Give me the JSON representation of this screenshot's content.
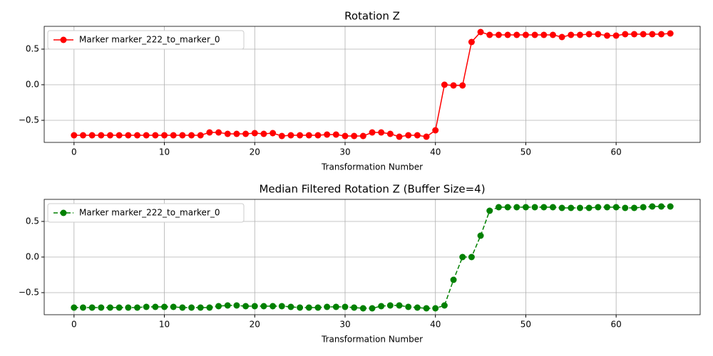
{
  "chart_data": [
    {
      "type": "line",
      "title": "Rotation Z",
      "x_label": "Transformation Number",
      "x": [
        0,
        1,
        2,
        3,
        4,
        5,
        6,
        7,
        8,
        9,
        10,
        11,
        12,
        13,
        14,
        15,
        16,
        17,
        18,
        19,
        20,
        21,
        22,
        23,
        24,
        25,
        26,
        27,
        28,
        29,
        30,
        31,
        32,
        33,
        34,
        35,
        36,
        37,
        38,
        39,
        40,
        41,
        42,
        43,
        44,
        45,
        46,
        47,
        48,
        49,
        50,
        51,
        52,
        53,
        54,
        55,
        56,
        57,
        58,
        59,
        60,
        61,
        62,
        63,
        64,
        65,
        66
      ],
      "series": [
        {
          "name": "Marker marker_222_to_marker_0",
          "color": "#ff0000",
          "linestyle": "solid",
          "values": [
            -0.71,
            -0.71,
            -0.71,
            -0.71,
            -0.71,
            -0.71,
            -0.71,
            -0.71,
            -0.71,
            -0.71,
            -0.71,
            -0.71,
            -0.71,
            -0.71,
            -0.71,
            -0.67,
            -0.67,
            -0.69,
            -0.69,
            -0.69,
            -0.68,
            -0.69,
            -0.68,
            -0.72,
            -0.71,
            -0.71,
            -0.71,
            -0.71,
            -0.7,
            -0.7,
            -0.72,
            -0.72,
            -0.72,
            -0.67,
            -0.67,
            -0.69,
            -0.73,
            -0.71,
            -0.71,
            -0.73,
            -0.64,
            0.0,
            -0.01,
            -0.01,
            0.6,
            0.74,
            0.7,
            0.7,
            0.7,
            0.7,
            0.7,
            0.7,
            0.7,
            0.7,
            0.67,
            0.7,
            0.7,
            0.71,
            0.71,
            0.69,
            0.69,
            0.71,
            0.71,
            0.71,
            0.71,
            0.71,
            0.72
          ]
        }
      ],
      "xlim": [
        -3.3,
        69.3
      ],
      "xticks": [
        0,
        10,
        20,
        30,
        40,
        50,
        60
      ],
      "ylim": [
        -0.81,
        0.82
      ],
      "yticks": [
        {
          "value": -0.5,
          "label": "−0.5"
        },
        {
          "value": 0,
          "label": "0.0"
        },
        {
          "value": 0.5,
          "label": "0.5"
        }
      ],
      "grid": true,
      "legend": "upper left"
    },
    {
      "type": "line",
      "title": "Median Filtered Rotation Z (Buffer Size=4)",
      "x_label": "Transformation Number",
      "x": [
        0,
        1,
        2,
        3,
        4,
        5,
        6,
        7,
        8,
        9,
        10,
        11,
        12,
        13,
        14,
        15,
        16,
        17,
        18,
        19,
        20,
        21,
        22,
        23,
        24,
        25,
        26,
        27,
        28,
        29,
        30,
        31,
        32,
        33,
        34,
        35,
        36,
        37,
        38,
        39,
        40,
        41,
        42,
        43,
        44,
        45,
        46,
        47,
        48,
        49,
        50,
        51,
        52,
        53,
        54,
        55,
        56,
        57,
        58,
        59,
        60,
        61,
        62,
        63,
        64,
        65,
        66
      ],
      "series": [
        {
          "name": "Marker marker_222_to_marker_0",
          "color": "#008000",
          "linestyle": "dashed",
          "values": [
            -0.71,
            -0.71,
            -0.71,
            -0.71,
            -0.71,
            -0.71,
            -0.71,
            -0.71,
            -0.7,
            -0.7,
            -0.7,
            -0.7,
            -0.71,
            -0.71,
            -0.71,
            -0.71,
            -0.69,
            -0.68,
            -0.68,
            -0.69,
            -0.69,
            -0.69,
            -0.69,
            -0.69,
            -0.7,
            -0.71,
            -0.71,
            -0.71,
            -0.7,
            -0.7,
            -0.7,
            -0.71,
            -0.72,
            -0.72,
            -0.69,
            -0.68,
            -0.68,
            -0.7,
            -0.71,
            -0.72,
            -0.72,
            -0.68,
            -0.32,
            0.0,
            0.0,
            0.3,
            0.65,
            0.7,
            0.7,
            0.7,
            0.7,
            0.7,
            0.7,
            0.7,
            0.69,
            0.69,
            0.69,
            0.69,
            0.7,
            0.7,
            0.7,
            0.69,
            0.69,
            0.7,
            0.71,
            0.71,
            0.71
          ]
        }
      ],
      "xlim": [
        -3.3,
        69.3
      ],
      "xticks": [
        0,
        10,
        20,
        30,
        40,
        50,
        60
      ],
      "ylim": [
        -0.81,
        0.81
      ],
      "yticks": [
        {
          "value": -0.5,
          "label": "−0.5"
        },
        {
          "value": 0,
          "label": "0.0"
        },
        {
          "value": 0.5,
          "label": "0.5"
        }
      ],
      "grid": true,
      "legend": "upper left"
    }
  ]
}
